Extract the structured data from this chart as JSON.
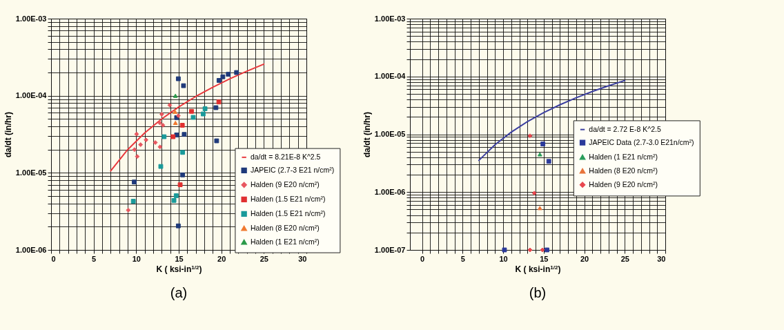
{
  "chart_data": [
    {
      "type": "scatter",
      "xlabel": "K ( ksi-in$^{1/2}$)",
      "ylabel": "da/dt (in/hr)",
      "annotations": [
        "(a)"
      ],
      "log": "y",
      "grid": true,
      "legend": "bottom right",
      "xlim": [
        0,
        30
      ],
      "ylim": [
        1e-06,
        0.001
      ],
      "xticks": [
        0,
        {
          "value": 1,
          "label": null
        },
        {
          "value": 2,
          "label": null
        },
        {
          "value": 3,
          "label": null
        },
        {
          "value": 4,
          "label": null
        },
        5,
        {
          "value": 6,
          "label": null
        },
        {
          "value": 7,
          "label": null
        },
        {
          "value": 8,
          "label": null
        },
        {
          "value": 9,
          "label": null
        },
        10,
        {
          "value": 11,
          "label": null
        },
        {
          "value": 12,
          "label": null
        },
        {
          "value": 13,
          "label": null
        },
        {
          "value": 14,
          "label": null
        },
        15,
        {
          "value": 16,
          "label": null
        },
        {
          "value": 17,
          "label": null
        },
        {
          "value": 18,
          "label": null
        },
        {
          "value": 19,
          "label": null
        },
        20,
        {
          "value": 21,
          "label": null
        },
        {
          "value": 22,
          "label": null
        },
        {
          "value": 23,
          "label": null
        },
        {
          "value": 24,
          "label": null
        },
        25,
        {
          "value": 26,
          "label": null
        },
        {
          "value": 27,
          "label": null
        },
        {
          "value": 28,
          "label": null
        },
        {
          "value": 29,
          "label": null
        },
        30
      ],
      "yticks": [
        {
          "value": 1e-06,
          "label": "1.00E-06"
        },
        {
          "value": 2e-06,
          "label": null
        },
        {
          "value": 3e-06,
          "label": null
        },
        {
          "value": 4e-06,
          "label": null
        },
        {
          "value": 5e-06,
          "label": null
        },
        {
          "value": 6e-06,
          "label": null
        },
        {
          "value": 7e-06,
          "label": null
        },
        {
          "value": 8e-06,
          "label": null
        },
        {
          "value": 9e-06,
          "label": null
        },
        {
          "value": 1e-05,
          "label": "1.00E-05"
        },
        {
          "value": 2e-05,
          "label": null
        },
        {
          "value": 3e-05,
          "label": null
        },
        {
          "value": 4e-05,
          "label": null
        },
        {
          "value": 5e-05,
          "label": null
        },
        {
          "value": 6e-05,
          "label": null
        },
        {
          "value": 7e-05,
          "label": null
        },
        {
          "value": 8e-05,
          "label": null
        },
        {
          "value": 9e-05,
          "label": null
        },
        {
          "value": 0.0001,
          "label": "1.00E-04"
        },
        {
          "value": 0.0002,
          "label": null
        },
        {
          "value": 0.0003,
          "label": null
        },
        {
          "value": 0.0004,
          "label": null
        },
        {
          "value": 0.0005,
          "label": null
        },
        {
          "value": 0.0006,
          "label": null
        },
        {
          "value": 0.0007,
          "label": null
        },
        {
          "value": 0.0008,
          "label": null
        },
        {
          "value": 0.0009,
          "label": null
        },
        {
          "value": 0.001,
          "label": "1.00E-03"
        }
      ],
      "series": [
        {
          "name": "da/dt = 8.21E-8 K^2.5",
          "type": "line",
          "marker": "none",
          "color": "#e8383d",
          "x": [
            7,
            9,
            11,
            13,
            15,
            17,
            19,
            21,
            23,
            25
          ],
          "values": [
            1.06e-05,
            2e-05,
            3.29e-05,
            5e-05,
            7.15e-05,
            9.78e-05,
            0.000129,
            0.000166,
            0.000208,
            0.000257
          ]
        },
        {
          "name": "JAPEIC (2.7-3 E21 n/cm²)",
          "marker": "square",
          "color": "#1f3a7a",
          "x": [
            14.95,
            15.56,
            19.73,
            20.18,
            20.82,
            21.79,
            19.37,
            14.75,
            14.75,
            15.64,
            19.45,
            15.45,
            9.77,
            14.95
          ],
          "values": [
            0.000166,
            0.000135,
            0.000158,
            0.000176,
            0.00019,
            0.0002,
            7e-05,
            5.2e-05,
            3.1e-05,
            3.15e-05,
            2.6e-05,
            9.4e-06,
            7.6e-06,
            2.05e-06
          ]
        },
        {
          "name": "Halden (9 E20 n/cm²)",
          "marker": "diamond",
          "color": "#e8575f",
          "x": [
            9.07,
            9.8,
            10.13,
            10.05,
            10.52,
            11.16,
            12.25,
            12.8,
            12.77,
            13.14,
            13.0,
            13.94,
            14.95
          ],
          "values": [
            3.28e-06,
            2e-05,
            1.63e-05,
            3.18e-05,
            2.32e-05,
            2.67e-05,
            2.47e-05,
            2.17e-05,
            4.45e-05,
            4.14e-05,
            5.75e-05,
            7.55e-05,
            5.5e-05
          ]
        },
        {
          "name": "Halden (1.5 E21 n/cm²)",
          "marker": "square",
          "color": "#e03030",
          "x": [
            14.33,
            15.42,
            16.5,
            19.71,
            15.17
          ],
          "values": [
            2.94e-05,
            4.14e-05,
            6.27e-05,
            8.3e-05,
            7e-06
          ]
        },
        {
          "name": "Halden (1.5 E21 n/cm²)",
          "marker": "square",
          "color": "#1a9a9a",
          "x": [
            13.28,
            12.89,
            15.45,
            16.7,
            17.87,
            18.09,
            9.66,
            14.44,
            14.7
          ],
          "values": [
            2.94e-05,
            1.21e-05,
            1.84e-05,
            5.24e-05,
            5.8e-05,
            6.78e-05,
            4.28e-06,
            4.38e-06,
            5.05e-06
          ]
        },
        {
          "name": "Halden (8 E20 n/cm²)",
          "marker": "triangle",
          "color": "#f07a30",
          "x": [
            14.56,
            14.61
          ],
          "values": [
            6.2e-05,
            4.45e-05
          ]
        },
        {
          "name": "Halden (1 E21 n/cm²)",
          "marker": "triangle",
          "color": "#2a9a4a",
          "x": [
            14.61
          ],
          "values": [
            0.0001
          ]
        }
      ]
    },
    {
      "type": "scatter",
      "xlabel": "K ( ksi-in$^{1/2}$)",
      "ylabel": "da/dt (in/hr)",
      "annotations": [
        "(b)"
      ],
      "log": "y",
      "grid": true,
      "legend": "right",
      "xlim": [
        -1.5,
        30
      ],
      "ylim": [
        1e-07,
        0.001
      ],
      "xticks": [
        0,
        {
          "value": 1,
          "label": null
        },
        {
          "value": 2,
          "label": null
        },
        {
          "value": 3,
          "label": null
        },
        {
          "value": 4,
          "label": null
        },
        5,
        {
          "value": 6,
          "label": null
        },
        {
          "value": 7,
          "label": null
        },
        {
          "value": 8,
          "label": null
        },
        {
          "value": 9,
          "label": null
        },
        10,
        {
          "value": 11,
          "label": null
        },
        {
          "value": 12,
          "label": null
        },
        {
          "value": 13,
          "label": null
        },
        {
          "value": 14,
          "label": null
        },
        15,
        {
          "value": 16,
          "label": null
        },
        {
          "value": 17,
          "label": null
        },
        {
          "value": 18,
          "label": null
        },
        {
          "value": 19,
          "label": null
        },
        20,
        {
          "value": 21,
          "label": null
        },
        {
          "value": 22,
          "label": null
        },
        {
          "value": 23,
          "label": null
        },
        {
          "value": 24,
          "label": null
        },
        25,
        {
          "value": 26,
          "label": null
        },
        {
          "value": 27,
          "label": null
        },
        {
          "value": 28,
          "label": null
        },
        {
          "value": 29,
          "label": null
        },
        30
      ],
      "yticks": [
        {
          "value": 1e-07,
          "label": "1.00E-07"
        },
        {
          "value": 2e-07,
          "label": null
        },
        {
          "value": 3e-07,
          "label": null
        },
        {
          "value": 4e-07,
          "label": null
        },
        {
          "value": 5e-07,
          "label": null
        },
        {
          "value": 6e-07,
          "label": null
        },
        {
          "value": 7e-07,
          "label": null
        },
        {
          "value": 8e-07,
          "label": null
        },
        {
          "value": 9e-07,
          "label": null
        },
        {
          "value": 1e-06,
          "label": "1.00E-06"
        },
        {
          "value": 2e-06,
          "label": null
        },
        {
          "value": 3e-06,
          "label": null
        },
        {
          "value": 4e-06,
          "label": null
        },
        {
          "value": 5e-06,
          "label": null
        },
        {
          "value": 6e-06,
          "label": null
        },
        {
          "value": 7e-06,
          "label": null
        },
        {
          "value": 8e-06,
          "label": null
        },
        {
          "value": 9e-06,
          "label": null
        },
        {
          "value": 1e-05,
          "label": "1.00E-05"
        },
        {
          "value": 2e-05,
          "label": null
        },
        {
          "value": 3e-05,
          "label": null
        },
        {
          "value": 4e-05,
          "label": null
        },
        {
          "value": 5e-05,
          "label": null
        },
        {
          "value": 6e-05,
          "label": null
        },
        {
          "value": 7e-05,
          "label": null
        },
        {
          "value": 8e-05,
          "label": null
        },
        {
          "value": 9e-05,
          "label": null
        },
        {
          "value": 0.0001,
          "label": "1.00E-04"
        },
        {
          "value": 0.0002,
          "label": null
        },
        {
          "value": 0.0003,
          "label": null
        },
        {
          "value": 0.0004,
          "label": null
        },
        {
          "value": 0.0005,
          "label": null
        },
        {
          "value": 0.0006,
          "label": null
        },
        {
          "value": 0.0007,
          "label": null
        },
        {
          "value": 0.0008,
          "label": null
        },
        {
          "value": 0.0009,
          "label": null
        },
        {
          "value": 0.001,
          "label": "1.00E-03"
        }
      ],
      "series": [
        {
          "name": "da/dt = 2.72 E-8 K^2.5",
          "type": "line",
          "marker": "none",
          "color": "#3b3fa0",
          "x": [
            7,
            9,
            11,
            13,
            15,
            17,
            19,
            21,
            23,
            25
          ],
          "values": [
            3.53e-06,
            6.61e-06,
            1.09e-05,
            1.66e-05,
            2.37e-05,
            3.24e-05,
            4.28e-05,
            5.5e-05,
            6.9e-05,
            8.5e-05
          ]
        },
        {
          "name": "JAPEIC Data (2.7-3.0 E21n/cm²)",
          "marker": "square",
          "color": "#2b3a9a",
          "x": [
            14.9,
            15.63,
            10.16,
            15.4
          ],
          "values": [
            6.8e-06,
            3.4e-06,
            1e-07,
            1e-07
          ]
        },
        {
          "name": "Halden (1 E21 n/cm²)",
          "marker": "triangle",
          "color": "#2a9d5a",
          "x": [
            14.53
          ],
          "values": [
            4.5e-06
          ]
        },
        {
          "name": "Halden (8 E20 n/cm²)",
          "marker": "triangle",
          "color": "#e8743b",
          "x": [
            14.53
          ],
          "values": [
            5.3e-07
          ]
        },
        {
          "name": "Halden (9 E20 n/cm²)",
          "marker": "diamond",
          "color": "#e8474f",
          "x": [
            13.31,
            13.84,
            13.31,
            14.84
          ],
          "values": [
            9.4e-06,
            9.6e-07,
            1e-07,
            1e-07
          ]
        }
      ]
    }
  ]
}
